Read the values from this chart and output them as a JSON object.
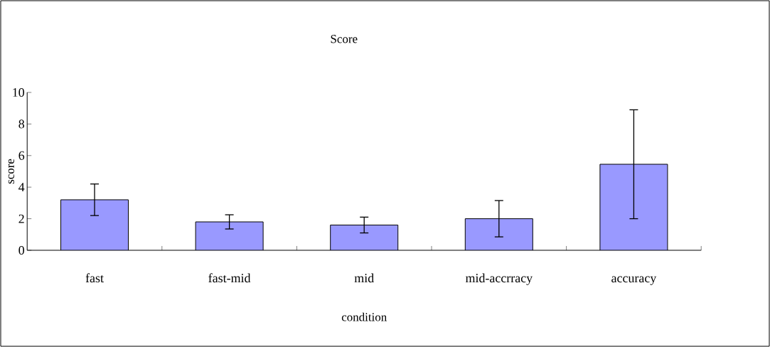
{
  "chart_data": {
    "type": "bar",
    "title": "Score",
    "xlabel": "condition",
    "ylabel": "score",
    "categories": [
      "fast",
      "fast-mid",
      "mid",
      "mid-accrracy",
      "accuracy"
    ],
    "values": [
      3.2,
      1.8,
      1.6,
      2.0,
      5.45
    ],
    "errors": [
      1.0,
      0.45,
      0.5,
      1.15,
      3.45
    ],
    "color": "#9999ff",
    "ylim": [
      0,
      10
    ],
    "yticks": [
      0,
      2,
      4,
      6,
      8,
      10
    ],
    "grid": false
  }
}
